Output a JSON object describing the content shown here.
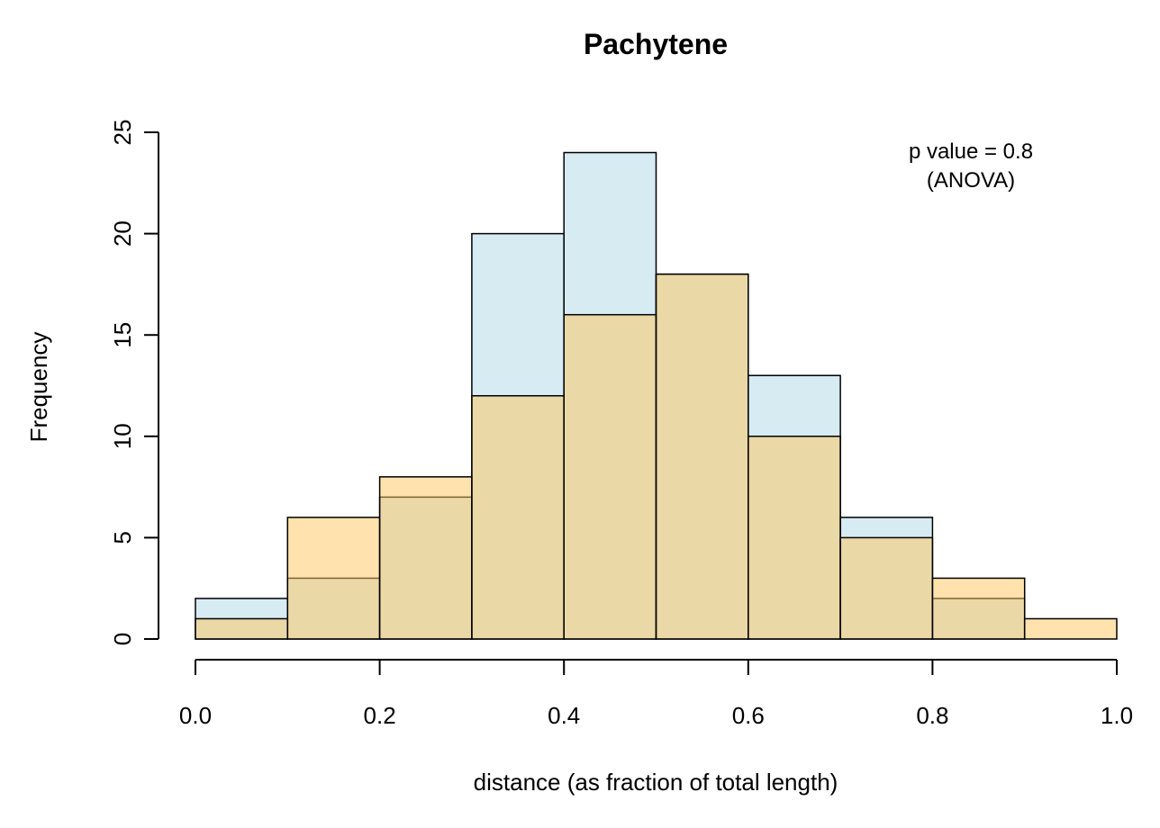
{
  "chart_data": {
    "type": "bar",
    "title": "Pachytene",
    "xlabel": "distance (as fraction of total length)",
    "ylabel": "Frequency",
    "xlim": [
      0,
      1
    ],
    "ylim": [
      0,
      25
    ],
    "x_ticks": [
      "0.0",
      "0.2",
      "0.4",
      "0.6",
      "0.8",
      "1.0"
    ],
    "y_ticks": [
      "0",
      "5",
      "10",
      "15",
      "20",
      "25"
    ],
    "grid": false,
    "bin_edges": [
      0.0,
      0.1,
      0.2,
      0.3,
      0.4,
      0.5,
      0.6,
      0.7,
      0.8,
      0.9,
      1.0
    ],
    "series": [
      {
        "color": "#ADD8E6",
        "opacity": 0.5,
        "values": [
          2,
          3,
          7,
          20,
          24,
          18,
          13,
          6,
          2,
          0
        ]
      },
      {
        "color": "#FFC65C",
        "opacity": 0.5,
        "values": [
          1,
          6,
          8,
          12,
          16,
          18,
          10,
          5,
          3,
          1
        ]
      }
    ],
    "annotations": [
      "p value = 0.8",
      "(ANOVA)"
    ]
  }
}
